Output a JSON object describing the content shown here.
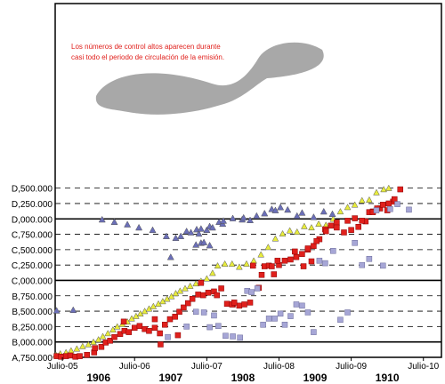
{
  "colors": {
    "yellow_triangle": "#e8ec3c",
    "blue_triangle": "#6b6fb8",
    "red_square": "#e0201c",
    "lavender_square": "#a6a6d6",
    "shade": "#a8a8a8",
    "note_text": "#e0201c"
  },
  "annotation": {
    "line1": "Los números de control altos aparecen durante",
    "line2": "casi todo el periodo de circulación de la emisión."
  },
  "chart_data": {
    "type": "scatter",
    "title": "",
    "xlabel": "",
    "ylabel": "",
    "xlim": [
      1905.4,
      1910.75
    ],
    "ylim": [
      4750000,
      10500000
    ],
    "y_ticks": [
      {
        "value": 4750000,
        "label": "A,750.000"
      },
      {
        "value": 5000000,
        "label": "B,000.000"
      },
      {
        "value": 5250000,
        "label": "B,250.000"
      },
      {
        "value": 5500000,
        "label": "B,500.000"
      },
      {
        "value": 5750000,
        "label": "B,750.000"
      },
      {
        "value": 6000000,
        "label": "C,000.000"
      },
      {
        "value": 6250000,
        "label": "C,250.000"
      },
      {
        "value": 6500000,
        "label": "C,500.000"
      },
      {
        "value": 6750000,
        "label": "C,750.000"
      },
      {
        "value": 7000000,
        "label": "D,000.000"
      },
      {
        "value": 7250000,
        "label": "D,250.000"
      },
      {
        "value": 7500000,
        "label": "D,500.000"
      }
    ],
    "solid_lines": [
      5000000,
      6000000,
      7000000
    ],
    "x_ticks": [
      {
        "value": 1905.5,
        "label": "Julio-05"
      },
      {
        "value": 1906.5,
        "label": "Julio-06"
      },
      {
        "value": 1907.5,
        "label": "Julio-07"
      },
      {
        "value": 1908.5,
        "label": "Julio-08"
      },
      {
        "value": 1909.5,
        "label": "Julio-09"
      },
      {
        "value": 1910.5,
        "label": "Julio-10"
      }
    ],
    "year_labels": [
      {
        "value": 1906.0,
        "label": "1906"
      },
      {
        "value": 1907.0,
        "label": "1907"
      },
      {
        "value": 1908.0,
        "label": "1908"
      },
      {
        "value": 1909.0,
        "label": "1909"
      },
      {
        "value": 1910.0,
        "label": "1910"
      }
    ],
    "grid": "horizontal-dashed",
    "series": [
      {
        "marker": "triangle",
        "color": "#e8ec3c",
        "x": [
          1905.41,
          1905.47,
          1905.55,
          1905.62,
          1905.7,
          1905.78,
          1905.86,
          1905.93,
          1906.0,
          1906.06,
          1906.13,
          1906.2,
          1906.26,
          1906.33,
          1906.4,
          1906.46,
          1906.52,
          1906.58,
          1906.64,
          1906.7,
          1906.76,
          1906.83,
          1906.89,
          1906.95,
          1907.01,
          1907.07,
          1907.13,
          1907.2,
          1907.27,
          1907.35,
          1907.42,
          1907.5,
          1907.58,
          1907.65,
          1907.75,
          1907.85,
          1907.95,
          1908.05,
          1908.15,
          1908.25,
          1908.35,
          1908.45,
          1908.55,
          1908.65,
          1908.75,
          1908.85,
          1908.95,
          1909.05,
          1909.15,
          1909.25,
          1909.35,
          1909.45,
          1909.55,
          1909.65,
          1909.75,
          1909.85,
          1909.95,
          1910.02
        ],
        "y": [
          4790000,
          4810000,
          4830000,
          4860000,
          4890000,
          4930000,
          4960000,
          5000000,
          5040000,
          5090000,
          5140000,
          5200000,
          5250000,
          5290000,
          5330000,
          5380000,
          5420000,
          5460000,
          5500000,
          5540000,
          5580000,
          5620000,
          5660000,
          5700000,
          5740000,
          5790000,
          5830000,
          5870000,
          5910000,
          5950000,
          5990000,
          6030000,
          6120000,
          6240000,
          6270000,
          6270000,
          6220000,
          6270000,
          6320000,
          6420000,
          6540000,
          6680000,
          6760000,
          6810000,
          6790000,
          6880000,
          6860000,
          6920000,
          6900000,
          7000000,
          7120000,
          7190000,
          7230000,
          7300000,
          7310000,
          7430000,
          7480000,
          7500000
        ]
      },
      {
        "marker": "triangle",
        "color": "#6b6fb8",
        "x": [
          1906.05,
          1906.22,
          1906.4,
          1906.56,
          1906.75,
          1906.94,
          1907.07,
          1907.14,
          1907.22,
          1907.28,
          1907.36,
          1907.39,
          1907.42,
          1907.5,
          1907.54,
          1907.58,
          1907.67,
          1907.72,
          1907.73,
          1907.86,
          1907.99,
          1908.01,
          1908.1,
          1908.19,
          1908.3,
          1908.4,
          1908.45,
          1908.52,
          1908.62,
          1908.75,
          1908.82,
          1908.98,
          1909.12,
          1909.24,
          1905.42,
          1905.65
        ],
        "y": [
          6990000,
          6950000,
          6910000,
          6860000,
          6820000,
          6720000,
          6690000,
          6720000,
          6800000,
          6780000,
          6830000,
          6760000,
          6840000,
          6820000,
          6880000,
          6860000,
          6950000,
          6920000,
          6970000,
          7010000,
          6990000,
          7020000,
          6980000,
          7050000,
          7090000,
          7160000,
          7140000,
          7190000,
          7150000,
          7050000,
          7100000,
          7030000,
          7120000,
          7080000,
          5510000,
          5520000
        ]
      },
      {
        "marker": "triangle",
        "color": "#6b6fb8",
        "x": [
          1907.0,
          1907.35,
          1907.42,
          1907.46,
          1907.54
        ],
        "y": [
          6380000,
          6580000,
          6610000,
          6620000,
          6570000
        ]
      },
      {
        "marker": "square",
        "color": "#e0201c",
        "x": [
          1905.42,
          1905.48,
          1905.55,
          1905.61,
          1905.68,
          1905.74,
          1905.84,
          1905.94,
          1906.04,
          1906.1,
          1906.16,
          1906.22,
          1906.3,
          1906.36,
          1906.42,
          1906.5,
          1906.57,
          1906.64,
          1906.7,
          1906.78,
          1906.86,
          1906.92,
          1906.99,
          1907.06,
          1907.12,
          1907.18,
          1907.24,
          1907.3,
          1907.38,
          1907.45,
          1907.52,
          1907.6,
          1907.64,
          1907.7,
          1907.78,
          1907.86,
          1907.95,
          1908.02,
          1908.1,
          1908.22,
          1908.3,
          1908.36,
          1908.43,
          1908.5,
          1908.58,
          1908.66,
          1908.74,
          1908.82,
          1908.9,
          1908.98,
          1909.06,
          1909.14,
          1909.22,
          1909.3,
          1909.4,
          1909.5,
          1909.6,
          1909.7,
          1909.8,
          1909.9,
          1910.0,
          1910.08,
          1905.95,
          1906.35,
          1906.78,
          1906.85,
          1907.1
        ],
        "y": [
          4770000,
          4760000,
          4770000,
          4780000,
          4760000,
          4770000,
          4790000,
          4830000,
          4920000,
          4990000,
          5020000,
          5080000,
          5130000,
          5180000,
          5160000,
          5230000,
          5260000,
          5210000,
          5180000,
          5230000,
          4960000,
          5280000,
          5370000,
          5410000,
          5490000,
          5560000,
          5630000,
          5700000,
          5770000,
          5760000,
          5800000,
          5820000,
          5760000,
          5870000,
          5620000,
          5610000,
          5590000,
          5610000,
          5640000,
          5880000,
          6230000,
          6240000,
          6100000,
          6250000,
          6320000,
          6340000,
          6380000,
          6430000,
          6500000,
          6560000,
          6670000,
          6830000,
          6890000,
          6940000,
          6780000,
          6820000,
          6870000,
          6960000,
          7120000,
          7170000,
          7140000,
          7280000,
          4900000,
          5330000,
          5370000,
          5140000,
          5110000
        ]
      },
      {
        "marker": "square",
        "color": "#e0201c",
        "x": [
          1907.42,
          1908.14,
          1908.26,
          1908.4,
          1908.48,
          1908.72,
          1908.84,
          1908.9,
          1909.02,
          1909.3,
          1909.45,
          1909.55,
          1909.65,
          1909.75,
          1909.8,
          1909.86,
          1909.94,
          1910.02,
          1910.1,
          1910.18,
          1907.85,
          1907.88,
          1908.95,
          1909.15
        ],
        "y": [
          5960000,
          6240000,
          6090000,
          6230000,
          6320000,
          6470000,
          6230000,
          6520000,
          6640000,
          6860000,
          6970000,
          7010000,
          6970000,
          7110000,
          7110000,
          7170000,
          7230000,
          7250000,
          7320000,
          7480000,
          5610000,
          5640000,
          6310000,
          6800000
        ]
      },
      {
        "marker": "square",
        "color": "#a6a6d6",
        "x": [
          1906.96,
          1907.22,
          1907.35,
          1907.46,
          1907.54,
          1907.6,
          1907.66,
          1907.76,
          1907.86,
          1907.96,
          1908.06,
          1908.12,
          1908.2,
          1908.28,
          1908.36,
          1908.44,
          1908.52,
          1908.58,
          1908.66,
          1908.74,
          1908.82,
          1908.9,
          1908.98,
          1909.06,
          1909.14,
          1909.25,
          1909.35,
          1909.45,
          1909.55,
          1909.65,
          1909.75,
          1909.85,
          1909.94,
          1910.04,
          1910.14,
          1910.3
        ],
        "y": [
          5080000,
          5250000,
          5490000,
          5480000,
          5240000,
          5430000,
          5260000,
          5100000,
          5090000,
          5070000,
          5830000,
          5810000,
          5870000,
          5280000,
          5380000,
          5380000,
          5460000,
          5280000,
          5420000,
          5610000,
          5590000,
          5480000,
          5160000,
          6320000,
          6280000,
          6480000,
          5360000,
          5480000,
          6610000,
          6250000,
          6350000,
          7140000,
          6240000,
          7160000,
          7240000,
          7150000
        ]
      }
    ]
  }
}
